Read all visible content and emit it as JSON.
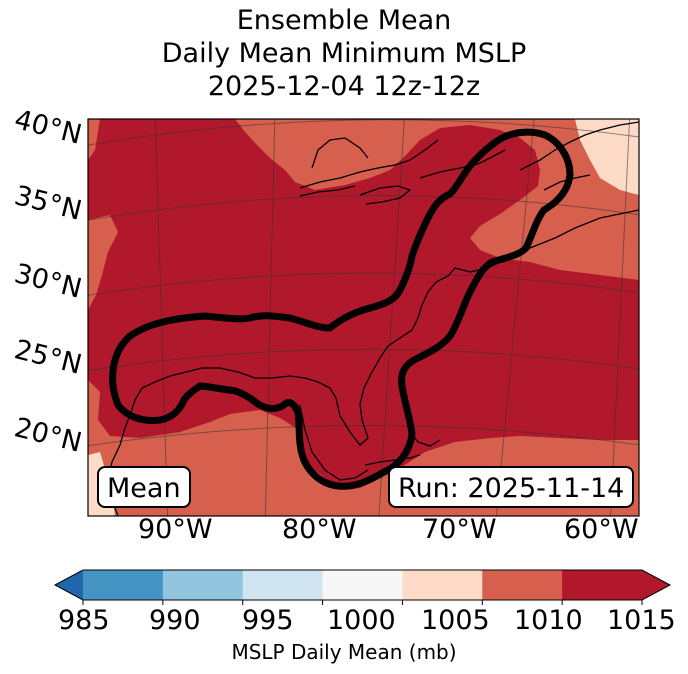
{
  "title": {
    "line1": "Ensemble Mean",
    "line2": "Daily Mean Minimum MSLP",
    "line3": "2025-12-04 12z-12z"
  },
  "lat_labels": [
    "40°N",
    "35°N",
    "30°N",
    "25°N",
    "20°N"
  ],
  "lon_labels": [
    "90°W",
    "80°W",
    "70°W",
    "60°W"
  ],
  "boxes": {
    "left": "Mean",
    "right": "Run: 2025-11-14"
  },
  "colorbar": {
    "ticks": [
      "985",
      "990",
      "995",
      "1000",
      "1005",
      "1010",
      "1015"
    ],
    "colors": [
      "#4393c3",
      "#92c5de",
      "#d1e5f0",
      "#f7f7f7",
      "#fddbc7",
      "#d6604d",
      "#b2182b"
    ],
    "under_color": "#2166ac",
    "over_color": "#b2182b",
    "title": "MSLP Daily Mean (mb)"
  },
  "map_colors": {
    "level_1005": "#fddbc7",
    "level_1010": "#d6604d",
    "level_1015": "#b2182b"
  }
}
